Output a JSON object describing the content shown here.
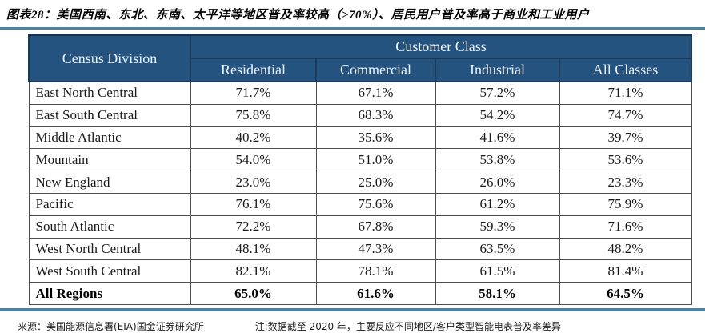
{
  "title": "图表28：美国西南、东北、东南、太平洋等地区普及率较高（>70%）、居民用户普及率高于商业和工业用户",
  "colors": {
    "header_bg": "#255380",
    "header_border": "#1a3a5c",
    "header_text": "#eef3f8",
    "rule": "#4a84a2",
    "body_border": "#4d4d4d",
    "body_text": "#1a1a1a"
  },
  "footer": {
    "source": "来源：美国能源信息署(EIA)国金证券研究所",
    "note": "注:数据截至 2020 年，主要反应不同地区/客户类型智能电表普及率差异"
  },
  "chart_data": {
    "type": "table",
    "title": "图表28：美国西南、东北、东南、太平洋等地区普及率较高（>70%）、居民用户普及率高于商业和工业用户",
    "group_header": "Customer Class",
    "columns": [
      "Census Division",
      "Residential",
      "Commercial",
      "Industrial",
      "All Classes"
    ],
    "rows": [
      [
        "East North Central",
        "71.7%",
        "67.1%",
        "57.2%",
        "71.1%"
      ],
      [
        "East South Central",
        "75.8%",
        "68.3%",
        "54.2%",
        "74.7%"
      ],
      [
        "Middle Atlantic",
        "40.2%",
        "35.6%",
        "41.6%",
        "39.7%"
      ],
      [
        "Mountain",
        "54.0%",
        "51.0%",
        "53.8%",
        "53.6%"
      ],
      [
        "New England",
        "23.0%",
        "25.0%",
        "26.0%",
        "23.3%"
      ],
      [
        "Pacific",
        "76.1%",
        "75.6%",
        "61.2%",
        "75.9%"
      ],
      [
        "South Atlantic",
        "72.2%",
        "67.8%",
        "59.3%",
        "71.6%"
      ],
      [
        "West North Central",
        "48.1%",
        "47.3%",
        "63.5%",
        "48.2%"
      ],
      [
        "West South Central",
        "82.1%",
        "78.1%",
        "61.5%",
        "81.4%"
      ]
    ],
    "summary_row": [
      "All Regions",
      "65.0%",
      "61.6%",
      "58.1%",
      "64.5%"
    ],
    "value_unit": "%",
    "note": "数据截至 2020 年，反映不同地区/客户类型智能电表普及率"
  }
}
